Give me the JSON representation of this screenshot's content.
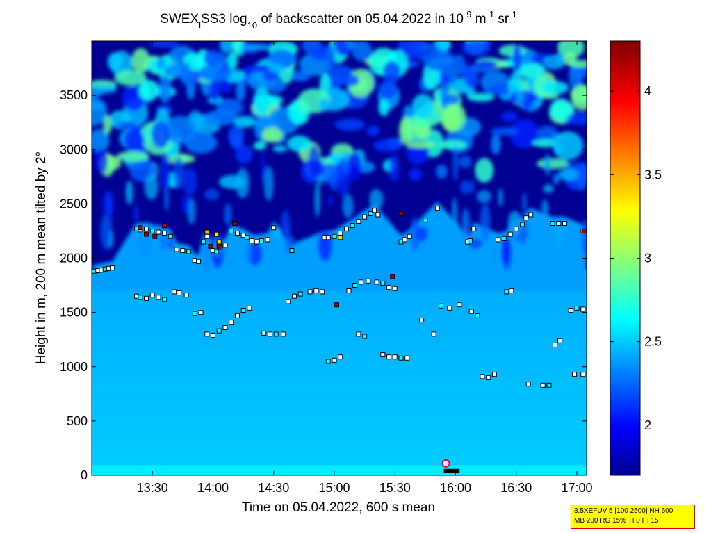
{
  "chart_data": {
    "type": "heatmap",
    "title": {
      "prefix": "SWEX",
      "sub1": "l",
      "mid1": "SS3 log",
      "sub2": "10",
      "mid2": " of backscatter on 05.04.2022 in 10",
      "sup1": "-9",
      "mid3": " m",
      "sup2": "-1",
      "mid4": " sr",
      "sup3": "-1"
    },
    "xlabel": "Time on 05.04.2022, 600 s mean",
    "ylabel": "Height in m, 200 m mean tilted by 2°",
    "x_tick_labels": [
      "13:30",
      "14:00",
      "14:30",
      "15:00",
      "15:30",
      "16:00",
      "16:30",
      "17:00"
    ],
    "x_ticks_hours": [
      13.5,
      14.0,
      14.5,
      15.0,
      15.5,
      16.0,
      16.5,
      17.0
    ],
    "xlim_hours": [
      13.0,
      17.08
    ],
    "y_tick_labels": [
      "0",
      "500",
      "1000",
      "1500",
      "2000",
      "2500",
      "3000",
      "3500"
    ],
    "y_ticks": [
      0,
      500,
      1000,
      1500,
      2000,
      2500,
      3000,
      3500
    ],
    "ylim": [
      0,
      4000
    ],
    "colorbar": {
      "range": [
        1.7,
        4.3
      ],
      "tick_labels": [
        "2",
        "2.5",
        "3",
        "3.5",
        "4"
      ],
      "ticks": [
        2.0,
        2.5,
        3.0,
        3.5,
        4.0
      ],
      "colormap": "jet"
    },
    "layers": {
      "cloud_base_range": [
        1850,
        2450
      ],
      "cloud_top": 4000,
      "boundary_layer_value": 2.45,
      "surface_value": 2.55,
      "upper_cloud_value": 2.65,
      "clear_value": 1.75
    },
    "markers": {
      "boundary_layer_top": [
        {
          "t": 13.02,
          "h": 1880
        },
        {
          "t": 13.05,
          "h": 1885
        },
        {
          "t": 13.08,
          "h": 1890
        },
        {
          "t": 13.11,
          "h": 1900
        },
        {
          "t": 13.14,
          "h": 1905
        },
        {
          "t": 13.17,
          "h": 1910
        },
        {
          "t": 13.37,
          "h": 2270
        },
        {
          "t": 13.4,
          "h": 2260
        },
        {
          "t": 13.45,
          "h": 2270
        },
        {
          "t": 13.5,
          "h": 2250
        },
        {
          "t": 13.55,
          "h": 2240
        },
        {
          "t": 13.6,
          "h": 2230
        },
        {
          "t": 13.65,
          "h": 2200
        },
        {
          "t": 13.7,
          "h": 2080
        },
        {
          "t": 13.75,
          "h": 2070
        },
        {
          "t": 13.8,
          "h": 2060
        },
        {
          "t": 13.85,
          "h": 1980
        },
        {
          "t": 13.88,
          "h": 1970
        },
        {
          "t": 13.92,
          "h": 2150
        },
        {
          "t": 13.95,
          "h": 2200
        },
        {
          "t": 14.0,
          "h": 2070
        },
        {
          "t": 14.03,
          "h": 2060
        },
        {
          "t": 14.06,
          "h": 2100
        },
        {
          "t": 14.1,
          "h": 2120
        },
        {
          "t": 14.15,
          "h": 2250
        },
        {
          "t": 14.2,
          "h": 2230
        },
        {
          "t": 14.25,
          "h": 2210
        },
        {
          "t": 14.28,
          "h": 2190
        },
        {
          "t": 14.32,
          "h": 2160
        },
        {
          "t": 14.36,
          "h": 2150
        },
        {
          "t": 14.4,
          "h": 2160
        },
        {
          "t": 14.45,
          "h": 2170
        },
        {
          "t": 14.5,
          "h": 2280
        },
        {
          "t": 14.65,
          "h": 2070
        },
        {
          "t": 14.92,
          "h": 2190
        },
        {
          "t": 14.95,
          "h": 2190
        },
        {
          "t": 15.0,
          "h": 2200
        },
        {
          "t": 15.05,
          "h": 2230
        },
        {
          "t": 15.1,
          "h": 2270
        },
        {
          "t": 15.15,
          "h": 2300
        },
        {
          "t": 15.2,
          "h": 2340
        },
        {
          "t": 15.25,
          "h": 2380
        },
        {
          "t": 15.3,
          "h": 2410
        },
        {
          "t": 15.33,
          "h": 2440
        },
        {
          "t": 15.36,
          "h": 2400
        },
        {
          "t": 15.55,
          "h": 2150
        },
        {
          "t": 15.58,
          "h": 2170
        },
        {
          "t": 15.62,
          "h": 2200
        },
        {
          "t": 15.75,
          "h": 2350
        },
        {
          "t": 15.85,
          "h": 2460
        },
        {
          "t": 16.1,
          "h": 2150
        },
        {
          "t": 16.12,
          "h": 2160
        },
        {
          "t": 16.15,
          "h": 2270
        },
        {
          "t": 16.35,
          "h": 2170
        },
        {
          "t": 16.4,
          "h": 2180
        },
        {
          "t": 16.45,
          "h": 2220
        },
        {
          "t": 16.5,
          "h": 2270
        },
        {
          "t": 16.55,
          "h": 2310
        },
        {
          "t": 16.58,
          "h": 2370
        },
        {
          "t": 16.62,
          "h": 2400
        },
        {
          "t": 16.8,
          "h": 2320
        },
        {
          "t": 16.85,
          "h": 2320
        },
        {
          "t": 16.9,
          "h": 2320
        },
        {
          "t": 17.05,
          "h": 2250
        }
      ],
      "mid_layer": [
        {
          "t": 13.37,
          "h": 1650
        },
        {
          "t": 13.4,
          "h": 1640
        },
        {
          "t": 13.45,
          "h": 1630
        },
        {
          "t": 13.5,
          "h": 1660
        },
        {
          "t": 13.55,
          "h": 1640
        },
        {
          "t": 13.6,
          "h": 1620
        },
        {
          "t": 13.68,
          "h": 1690
        },
        {
          "t": 13.72,
          "h": 1680
        },
        {
          "t": 13.78,
          "h": 1660
        },
        {
          "t": 13.85,
          "h": 1490
        },
        {
          "t": 13.9,
          "h": 1500
        },
        {
          "t": 13.95,
          "h": 1300
        },
        {
          "t": 14.0,
          "h": 1290
        },
        {
          "t": 14.05,
          "h": 1330
        },
        {
          "t": 14.1,
          "h": 1360
        },
        {
          "t": 14.15,
          "h": 1410
        },
        {
          "t": 14.2,
          "h": 1470
        },
        {
          "t": 14.25,
          "h": 1520
        },
        {
          "t": 14.3,
          "h": 1540
        },
        {
          "t": 14.42,
          "h": 1310
        },
        {
          "t": 14.47,
          "h": 1300
        },
        {
          "t": 14.52,
          "h": 1300
        },
        {
          "t": 14.58,
          "h": 1300
        },
        {
          "t": 14.62,
          "h": 1600
        },
        {
          "t": 14.67,
          "h": 1650
        },
        {
          "t": 14.72,
          "h": 1670
        },
        {
          "t": 14.8,
          "h": 1690
        },
        {
          "t": 14.85,
          "h": 1700
        },
        {
          "t": 14.9,
          "h": 1690
        },
        {
          "t": 14.95,
          "h": 1050
        },
        {
          "t": 15.0,
          "h": 1060
        },
        {
          "t": 15.05,
          "h": 1090
        },
        {
          "t": 15.12,
          "h": 1700
        },
        {
          "t": 15.17,
          "h": 1750
        },
        {
          "t": 15.22,
          "h": 1780
        },
        {
          "t": 15.28,
          "h": 1790
        },
        {
          "t": 15.35,
          "h": 1780
        },
        {
          "t": 15.4,
          "h": 1770
        },
        {
          "t": 15.45,
          "h": 1730
        },
        {
          "t": 15.5,
          "h": 1720
        },
        {
          "t": 15.2,
          "h": 1300
        },
        {
          "t": 15.25,
          "h": 1280
        },
        {
          "t": 15.4,
          "h": 1110
        },
        {
          "t": 15.45,
          "h": 1090
        },
        {
          "t": 15.5,
          "h": 1090
        },
        {
          "t": 15.55,
          "h": 1080
        },
        {
          "t": 15.6,
          "h": 1080
        },
        {
          "t": 15.72,
          "h": 1430
        },
        {
          "t": 15.82,
          "h": 1300
        },
        {
          "t": 15.88,
          "h": 1560
        },
        {
          "t": 15.95,
          "h": 1540
        },
        {
          "t": 16.03,
          "h": 1570
        },
        {
          "t": 16.13,
          "h": 1510
        },
        {
          "t": 16.18,
          "h": 1470
        },
        {
          "t": 16.22,
          "h": 910
        },
        {
          "t": 16.27,
          "h": 900
        },
        {
          "t": 16.32,
          "h": 930
        },
        {
          "t": 16.42,
          "h": 1690
        },
        {
          "t": 16.46,
          "h": 1700
        },
        {
          "t": 16.6,
          "h": 840
        },
        {
          "t": 16.72,
          "h": 830
        },
        {
          "t": 16.77,
          "h": 830
        },
        {
          "t": 16.82,
          "h": 1200
        },
        {
          "t": 16.86,
          "h": 1240
        },
        {
          "t": 16.95,
          "h": 1520
        },
        {
          "t": 17.0,
          "h": 1540
        },
        {
          "t": 17.05,
          "h": 1530
        },
        {
          "t": 16.98,
          "h": 930
        },
        {
          "t": 17.05,
          "h": 930
        }
      ],
      "high_value_markers": [
        {
          "t": 13.4,
          "h": 2280,
          "v": 4.1
        },
        {
          "t": 13.45,
          "h": 2220,
          "v": 4.2
        },
        {
          "t": 13.52,
          "h": 2200,
          "v": 4.2
        },
        {
          "t": 13.6,
          "h": 2300,
          "v": 4.1
        },
        {
          "t": 13.98,
          "h": 2110,
          "v": 4.2
        },
        {
          "t": 14.05,
          "h": 2110,
          "v": 4.2
        },
        {
          "t": 14.18,
          "h": 2320,
          "v": 4.2
        },
        {
          "t": 15.02,
          "h": 1570,
          "v": 4.2
        },
        {
          "t": 15.48,
          "h": 1830,
          "v": 4.2
        },
        {
          "t": 15.55,
          "h": 2410,
          "v": 4.2
        },
        {
          "t": 17.06,
          "h": 2250,
          "v": 4.2
        },
        {
          "t": 14.03,
          "h": 2220,
          "v": 3.4
        },
        {
          "t": 13.95,
          "h": 2240,
          "v": 3.5
        },
        {
          "t": 14.05,
          "h": 2150,
          "v": 3.4
        },
        {
          "t": 15.05,
          "h": 2190,
          "v": 3.4
        }
      ],
      "surface_marker": {
        "t": 15.92,
        "h": 110
      }
    }
  },
  "info_box": {
    "line1": "3.5XEFUV 5 [100 2500] NH 600",
    "line2": "MB 200 RG 15% TI 0 HI 15"
  }
}
